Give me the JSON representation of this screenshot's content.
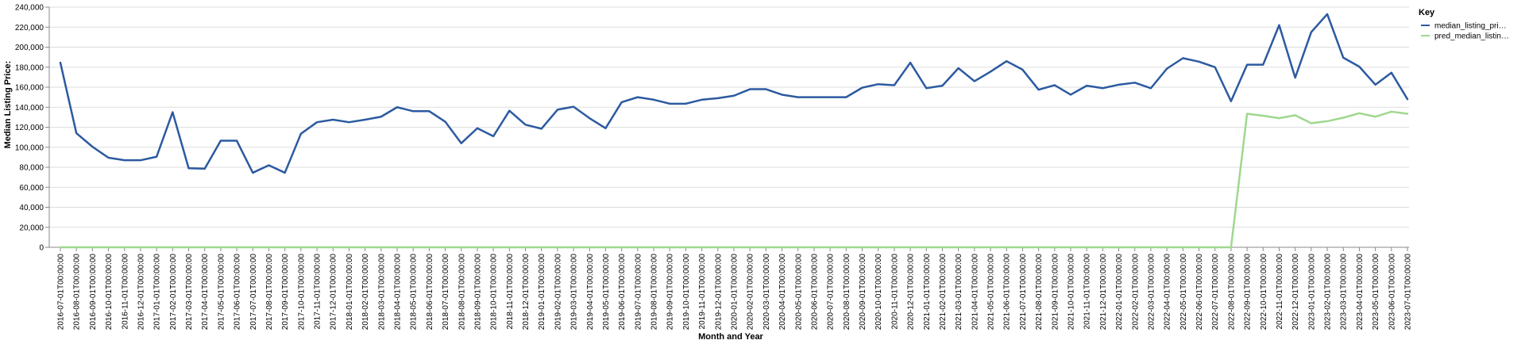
{
  "chart_data": {
    "type": "line",
    "xlabel": "Month and Year",
    "ylabel": "Median Listing Price:",
    "ylim": [
      0,
      240000
    ],
    "yticks": [
      "0",
      "20,000",
      "40,000",
      "60,000",
      "80,000",
      "100,000",
      "120,000",
      "140,000",
      "160,000",
      "180,000",
      "200,000",
      "220,000",
      "240,000"
    ],
    "grid": true,
    "legend": {
      "title": "Key",
      "placement": "top-right",
      "entries": [
        "median_listing_pri…",
        "pred_median_listin…"
      ]
    },
    "colors": [
      "#2c5aa0",
      "#9fd88f"
    ],
    "x": [
      "2016-07-01T00:00:00",
      "2016-08-01T00:00:00",
      "2016-09-01T00:00:00",
      "2016-10-01T00:00:00",
      "2016-11-01T00:00:00",
      "2016-12-01T00:00:00",
      "2017-01-01T00:00:00",
      "2017-02-01T00:00:00",
      "2017-03-01T00:00:00",
      "2017-04-01T00:00:00",
      "2017-05-01T00:00:00",
      "2017-06-01T00:00:00",
      "2017-07-01T00:00:00",
      "2017-08-01T00:00:00",
      "2017-09-01T00:00:00",
      "2017-10-01T00:00:00",
      "2017-11-01T00:00:00",
      "2017-12-01T00:00:00",
      "2018-01-01T00:00:00",
      "2018-02-01T00:00:00",
      "2018-03-01T00:00:00",
      "2018-04-01T00:00:00",
      "2018-05-01T00:00:00",
      "2018-06-01T00:00:00",
      "2018-07-01T00:00:00",
      "2018-08-01T00:00:00",
      "2018-09-01T00:00:00",
      "2018-10-01T00:00:00",
      "2018-11-01T00:00:00",
      "2018-12-01T00:00:00",
      "2019-01-01T00:00:00",
      "2019-02-01T00:00:00",
      "2019-03-01T00:00:00",
      "2019-04-01T00:00:00",
      "2019-05-01T00:00:00",
      "2019-06-01T00:00:00",
      "2019-07-01T00:00:00",
      "2019-08-01T00:00:00",
      "2019-09-01T00:00:00",
      "2019-10-01T00:00:00",
      "2019-11-01T00:00:00",
      "2019-12-01T00:00:00",
      "2020-01-01T00:00:00",
      "2020-02-01T00:00:00",
      "2020-03-01T00:00:00",
      "2020-04-01T00:00:00",
      "2020-05-01T00:00:00",
      "2020-06-01T00:00:00",
      "2020-07-01T00:00:00",
      "2020-08-01T00:00:00",
      "2020-09-01T00:00:00",
      "2020-10-01T00:00:00",
      "2020-11-01T00:00:00",
      "2020-12-01T00:00:00",
      "2021-01-01T00:00:00",
      "2021-02-01T00:00:00",
      "2021-03-01T00:00:00",
      "2021-04-01T00:00:00",
      "2021-05-01T00:00:00",
      "2021-06-01T00:00:00",
      "2021-07-01T00:00:00",
      "2021-08-01T00:00:00",
      "2021-09-01T00:00:00",
      "2021-10-01T00:00:00",
      "2021-11-01T00:00:00",
      "2021-12-01T00:00:00",
      "2022-01-01T00:00:00",
      "2022-02-01T00:00:00",
      "2022-03-01T00:00:00",
      "2022-04-01T00:00:00",
      "2022-05-01T00:00:00",
      "2022-06-01T00:00:00",
      "2022-07-01T00:00:00",
      "2022-08-01T00:00:00",
      "2022-09-01T00:00:00",
      "2022-10-01T00:00:00",
      "2022-11-01T00:00:00",
      "2022-12-01T00:00:00",
      "2023-01-01T00:00:00",
      "2023-02-01T00:00:00",
      "2023-03-01T00:00:00",
      "2023-04-01T00:00:00",
      "2023-05-01T00:00:00",
      "2023-06-01T00:00:00",
      "2023-07-01T00:00:00"
    ],
    "series": [
      {
        "name": "median_listing_pri…",
        "values": [
          184500,
          114000,
          100500,
          89500,
          87000,
          87000,
          90500,
          135000,
          79000,
          78500,
          106500,
          106500,
          74500,
          82000,
          74500,
          113500,
          125000,
          127500,
          125000,
          127500,
          130500,
          140000,
          136000,
          136000,
          125500,
          104000,
          119000,
          111000,
          136500,
          122500,
          118500,
          137500,
          140500,
          129000,
          119000,
          145000,
          150000,
          147500,
          143500,
          143500,
          147500,
          149000,
          151500,
          158000,
          158000,
          152500,
          150000,
          150000,
          150000,
          150000,
          159500,
          163000,
          162000,
          184500,
          159000,
          161500,
          179000,
          166000,
          175500,
          186000,
          177500,
          157500,
          162000,
          152500,
          161500,
          159000,
          162500,
          164500,
          159000,
          178500,
          189000,
          185500,
          180000,
          146000,
          182500,
          182500,
          222000,
          169500,
          215000,
          233000,
          189500,
          180500,
          162500,
          174500,
          148000
        ]
      },
      {
        "name": "pred_median_listin…",
        "values": [
          0,
          0,
          0,
          0,
          0,
          0,
          0,
          0,
          0,
          0,
          0,
          0,
          0,
          0,
          0,
          0,
          0,
          0,
          0,
          0,
          0,
          0,
          0,
          0,
          0,
          0,
          0,
          0,
          0,
          0,
          0,
          0,
          0,
          0,
          0,
          0,
          0,
          0,
          0,
          0,
          0,
          0,
          0,
          0,
          0,
          0,
          0,
          0,
          0,
          0,
          0,
          0,
          0,
          0,
          0,
          0,
          0,
          0,
          0,
          0,
          0,
          0,
          0,
          0,
          0,
          0,
          0,
          0,
          0,
          0,
          0,
          0,
          0,
          0,
          133500,
          131500,
          129000,
          132000,
          124000,
          126000,
          129500,
          134000,
          130500,
          135500,
          133500
        ]
      }
    ]
  }
}
